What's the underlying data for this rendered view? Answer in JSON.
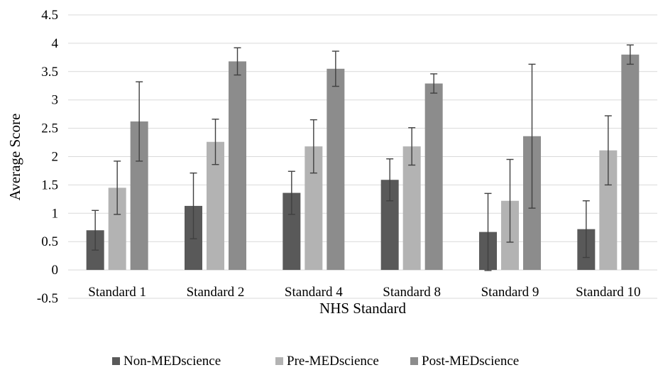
{
  "chart_data": {
    "type": "bar",
    "title": "",
    "xlabel": "NHS Standard",
    "ylabel": "Average Score",
    "ylim": [
      -0.5,
      4.5
    ],
    "y_ticks": [
      "-0.5",
      "0",
      "0.5",
      "1",
      "1.5",
      "2",
      "2.5",
      "3",
      "3.5",
      "4",
      "4.5"
    ],
    "grid": "horizontal",
    "legend_position": "bottom",
    "categories": [
      "Standard 1",
      "Standard 2",
      "Standard 4",
      "Standard 8",
      "Standard 9",
      "Standard 10"
    ],
    "series": [
      {
        "name": "Non-MEDscience",
        "color": "#595959",
        "values": [
          0.7,
          1.13,
          1.36,
          1.59,
          0.67,
          0.72
        ],
        "error": [
          0.35,
          0.58,
          0.38,
          0.37,
          0.68,
          0.5
        ]
      },
      {
        "name": "Pre-MEDscience",
        "color": "#b3b3b3",
        "values": [
          1.45,
          2.26,
          2.18,
          2.18,
          1.22,
          2.11
        ],
        "error": [
          0.47,
          0.4,
          0.47,
          0.33,
          0.73,
          0.61
        ]
      },
      {
        "name": "Post-MEDscience",
        "color": "#8c8c8c",
        "values": [
          2.62,
          3.68,
          3.55,
          3.29,
          2.36,
          3.8
        ],
        "error": [
          0.7,
          0.24,
          0.31,
          0.17,
          1.27,
          0.17
        ]
      }
    ]
  }
}
